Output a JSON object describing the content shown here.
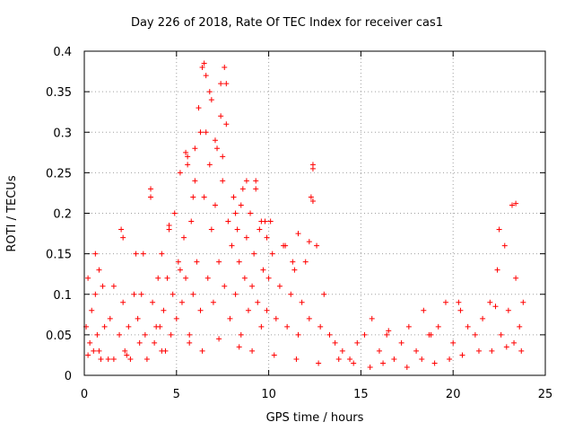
{
  "chart_data": {
    "type": "scatter",
    "title": "Day 226 of 2018, Rate Of TEC Index for receiver cas1",
    "xlabel": "GPS time / hours",
    "ylabel": "ROTI / TECUs",
    "xlim": [
      0,
      25
    ],
    "ylim": [
      0,
      0.4
    ],
    "xticks": [
      "0",
      "5",
      "10",
      "15",
      "20",
      "25"
    ],
    "yticks": [
      "0",
      "0.05",
      "0.1",
      "0.15",
      "0.2",
      "0.25",
      "0.3",
      "0.35",
      "0.4"
    ],
    "grid": true,
    "marker": "+",
    "color": "#ff0000",
    "series": [
      {
        "name": "cas1 ROTI",
        "x": [
          0.1,
          0.2,
          0.3,
          0.4,
          0.5,
          0.6,
          0.7,
          0.8,
          0.9,
          1.1,
          1.4,
          1.6,
          1.9,
          2.0,
          2.1,
          2.2,
          2.4,
          2.5,
          2.8,
          2.9,
          3.0,
          3.1,
          3.3,
          3.6,
          3.7,
          3.8,
          4.1,
          4.2,
          4.3,
          4.4,
          4.5,
          4.6,
          4.7,
          4.8,
          4.9,
          5.0,
          5.1,
          5.2,
          5.3,
          5.4,
          5.5,
          5.6,
          5.7,
          5.8,
          5.9,
          6.0,
          6.1,
          6.2,
          6.3,
          6.4,
          6.5,
          6.6,
          6.7,
          6.8,
          6.9,
          7.0,
          7.1,
          7.2,
          7.3,
          7.4,
          7.5,
          7.6,
          7.7,
          7.8,
          7.9,
          8.0,
          8.1,
          8.2,
          8.3,
          8.4,
          8.5,
          8.6,
          8.7,
          8.8,
          8.9,
          9.0,
          9.1,
          9.2,
          9.3,
          9.4,
          9.5,
          9.6,
          9.7,
          9.8,
          9.9,
          10.0,
          10.2,
          10.4,
          10.6,
          10.8,
          11.0,
          11.2,
          11.4,
          11.6,
          11.8,
          12.0,
          12.2,
          12.3,
          12.4,
          12.6,
          12.8,
          13.0,
          13.3,
          13.6,
          14.0,
          14.4,
          14.8,
          15.2,
          15.6,
          16.0,
          16.4,
          16.8,
          17.2,
          17.6,
          18.0,
          18.4,
          18.8,
          19.2,
          19.6,
          20.0,
          20.4,
          20.8,
          21.2,
          21.6,
          22.0,
          22.4,
          22.6,
          22.8,
          23.0,
          23.2,
          23.4,
          23.6,
          23.8,
          6.5,
          6.6,
          7.6,
          7.7,
          6.8,
          7.4,
          5.5,
          5.6,
          12.4,
          12.4,
          23.4,
          22.5,
          3.6,
          8.8,
          9.3,
          10.1,
          11.6,
          12.2,
          5.9,
          6.3,
          7.1,
          8.2,
          0.6,
          1.0,
          2.1,
          4.0,
          9.9,
          10.9,
          11.3,
          3.2,
          5.2,
          6.0,
          6.9,
          7.5,
          8.5,
          9.6,
          2.7,
          4.6,
          1.6,
          3.9,
          20.3,
          22.3,
          16.5,
          18.7,
          0.2,
          0.8,
          1.3,
          2.3,
          3.4,
          4.2,
          5.7,
          6.4,
          7.3,
          8.4,
          9.1,
          10.3,
          11.5,
          12.7,
          13.8,
          14.6,
          15.5,
          16.2,
          17.5,
          18.3,
          19.0,
          19.8,
          20.5,
          21.4,
          22.1,
          22.9,
          23.3,
          23.7
        ],
        "y": [
          0.06,
          0.12,
          0.04,
          0.08,
          0.03,
          0.1,
          0.05,
          0.13,
          0.02,
          0.06,
          0.07,
          0.02,
          0.05,
          0.18,
          0.09,
          0.03,
          0.06,
          0.02,
          0.15,
          0.07,
          0.04,
          0.1,
          0.05,
          0.23,
          0.09,
          0.04,
          0.06,
          0.15,
          0.08,
          0.03,
          0.12,
          0.18,
          0.05,
          0.1,
          0.2,
          0.07,
          0.14,
          0.25,
          0.09,
          0.17,
          0.12,
          0.27,
          0.05,
          0.19,
          0.1,
          0.24,
          0.14,
          0.33,
          0.08,
          0.38,
          0.22,
          0.3,
          0.12,
          0.26,
          0.18,
          0.09,
          0.21,
          0.28,
          0.14,
          0.36,
          0.24,
          0.11,
          0.31,
          0.19,
          0.07,
          0.16,
          0.22,
          0.1,
          0.18,
          0.14,
          0.05,
          0.23,
          0.12,
          0.17,
          0.08,
          0.2,
          0.11,
          0.15,
          0.24,
          0.09,
          0.18,
          0.06,
          0.13,
          0.19,
          0.08,
          0.12,
          0.15,
          0.07,
          0.11,
          0.16,
          0.06,
          0.1,
          0.13,
          0.05,
          0.09,
          0.14,
          0.07,
          0.22,
          0.26,
          0.16,
          0.06,
          0.1,
          0.05,
          0.04,
          0.03,
          0.02,
          0.04,
          0.05,
          0.07,
          0.03,
          0.05,
          0.02,
          0.04,
          0.06,
          0.03,
          0.08,
          0.05,
          0.06,
          0.09,
          0.04,
          0.08,
          0.06,
          0.05,
          0.07,
          0.09,
          0.13,
          0.05,
          0.16,
          0.08,
          0.21,
          0.12,
          0.06,
          0.09,
          0.385,
          0.37,
          0.38,
          0.36,
          0.35,
          0.32,
          0.275,
          0.26,
          0.255,
          0.215,
          0.212,
          0.18,
          0.22,
          0.24,
          0.23,
          0.19,
          0.175,
          0.165,
          0.22,
          0.3,
          0.29,
          0.2,
          0.15,
          0.11,
          0.17,
          0.12,
          0.17,
          0.16,
          0.14,
          0.15,
          0.13,
          0.28,
          0.34,
          0.27,
          0.21,
          0.19,
          0.1,
          0.185,
          0.11,
          0.06,
          0.09,
          0.085,
          0.055,
          0.05,
          0.025,
          0.03,
          0.02,
          0.025,
          0.02,
          0.03,
          0.04,
          0.03,
          0.045,
          0.035,
          0.03,
          0.025,
          0.02,
          0.015,
          0.02,
          0.015,
          0.01,
          0.015,
          0.01,
          0.02,
          0.015,
          0.02,
          0.025,
          0.03,
          0.03,
          0.035,
          0.04,
          0.03
        ]
      }
    ]
  }
}
